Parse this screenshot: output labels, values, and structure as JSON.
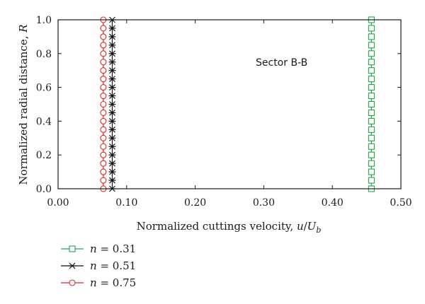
{
  "chart_data": {
    "type": "line",
    "xlabel_text": "Normalized cuttings velocity,",
    "xlabel_var": "u",
    "xlabel_slash": "/",
    "xlabel_var2": "U",
    "xlabel_sub": "b",
    "ylabel_text": "Normalized radial distance,",
    "ylabel_var": "R",
    "xlim": [
      0.0,
      0.5
    ],
    "ylim": [
      0.0,
      1.0
    ],
    "xticks": [
      "0.00",
      "0.10",
      "0.20",
      "0.30",
      "0.40",
      "0.50"
    ],
    "yticks": [
      "0.0",
      "0.2",
      "0.4",
      "0.6",
      "0.8",
      "1.0"
    ],
    "y_points": [
      0.0,
      0.05,
      0.1,
      0.15,
      0.2,
      0.25,
      0.3,
      0.35,
      0.4,
      0.45,
      0.5,
      0.55,
      0.6,
      0.65,
      0.7,
      0.75,
      0.8,
      0.85,
      0.9,
      0.95,
      1.0
    ],
    "annotation": "Sector B-B",
    "grid": false,
    "legend_position": "below-left",
    "series": [
      {
        "legend_var": "n",
        "legend_value": "= 0.31",
        "x": 0.457,
        "marker": "square",
        "color": "#1fa34a"
      },
      {
        "legend_var": "n",
        "legend_value": "= 0.51",
        "x": 0.079,
        "marker": "asterisk",
        "color": "#111111"
      },
      {
        "legend_var": "n",
        "legend_value": "= 0.75",
        "x": 0.066,
        "marker": "circle",
        "color": "#e0242b"
      }
    ]
  }
}
